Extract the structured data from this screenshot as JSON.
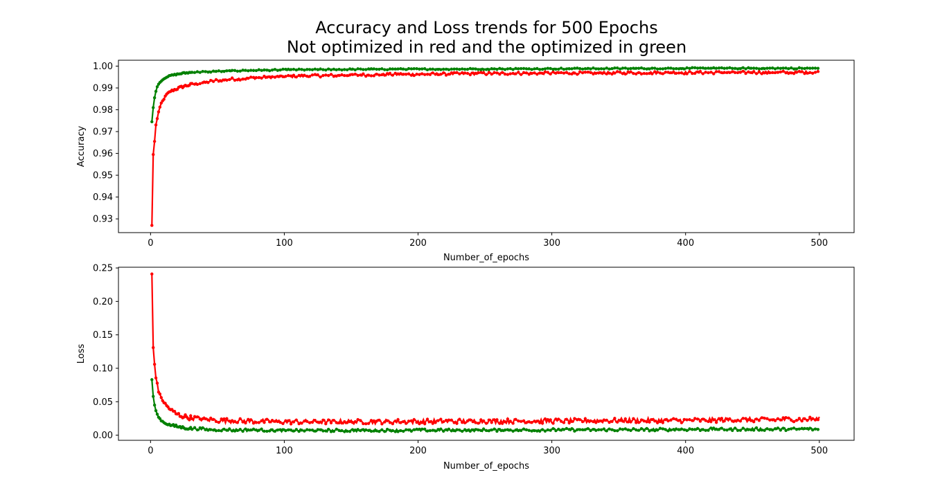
{
  "figure": {
    "title_line1": "Accuracy and Loss trends for 500 Epochs",
    "title_line2": "Not optimized in red and the optimized in green"
  },
  "colors": {
    "not_optimized": "#ff0000",
    "optimized": "#008000"
  },
  "chart_data": [
    {
      "type": "line",
      "xlabel": "Number_of_epochs",
      "ylabel": "Accuracy",
      "xlim": [
        -24,
        526
      ],
      "ylim": [
        0.9237,
        1.0027
      ],
      "xticks": [
        0,
        100,
        200,
        300,
        400,
        500
      ],
      "yticks": [
        0.93,
        0.94,
        0.95,
        0.96,
        0.97,
        0.98,
        0.99,
        1.0
      ],
      "ytick_labels": [
        "0.93",
        "0.94",
        "0.95",
        "0.96",
        "0.97",
        "0.98",
        "0.99",
        "1.00"
      ],
      "grid": false,
      "series": [
        {
          "color": "#ff0000",
          "x": [
            1,
            2,
            3,
            4,
            5,
            6,
            8,
            10,
            12,
            15,
            20,
            25,
            30,
            40,
            50,
            60,
            80,
            100,
            125,
            150,
            175,
            200,
            250,
            300,
            350,
            400,
            450,
            500
          ],
          "y": [
            0.927,
            0.9595,
            0.9655,
            0.973,
            0.976,
            0.979,
            0.983,
            0.985,
            0.987,
            0.9885,
            0.9897,
            0.9908,
            0.9915,
            0.9925,
            0.9935,
            0.994,
            0.9947,
            0.9952,
            0.9956,
            0.9959,
            0.9961,
            0.9963,
            0.9966,
            0.9968,
            0.9969,
            0.997,
            0.9971,
            0.9972
          ],
          "noise": 0.0006
        },
        {
          "color": "#008000",
          "x": [
            1,
            2,
            3,
            4,
            5,
            6,
            8,
            10,
            12,
            15,
            20,
            25,
            30,
            40,
            50,
            60,
            80,
            100,
            150,
            200,
            250,
            300,
            350,
            400,
            450,
            500
          ],
          "y": [
            0.9745,
            0.981,
            0.9855,
            0.9885,
            0.9905,
            0.9918,
            0.9932,
            0.9942,
            0.995,
            0.9957,
            0.9963,
            0.9968,
            0.9971,
            0.9974,
            0.9976,
            0.9978,
            0.9981,
            0.9983,
            0.9985,
            0.9986,
            0.9987,
            0.9988,
            0.9989,
            0.999,
            0.999,
            0.999
          ],
          "noise": 0.0003
        }
      ]
    },
    {
      "type": "line",
      "xlabel": "Number_of_epochs",
      "ylabel": "Loss",
      "xlim": [
        -24,
        526
      ],
      "ylim": [
        -0.0077,
        0.2511
      ],
      "xticks": [
        0,
        100,
        200,
        300,
        400,
        500
      ],
      "yticks": [
        0.0,
        0.05,
        0.1,
        0.15,
        0.2,
        0.25
      ],
      "ytick_labels": [
        "0.00",
        "0.05",
        "0.10",
        "0.15",
        "0.20",
        "0.25"
      ],
      "grid": false,
      "series": [
        {
          "color": "#ff0000",
          "x": [
            1,
            2,
            3,
            4,
            5,
            6,
            8,
            10,
            12,
            15,
            20,
            25,
            30,
            40,
            50,
            75,
            100,
            150,
            200,
            250,
            300,
            350,
            400,
            450,
            500
          ],
          "y": [
            0.241,
            0.131,
            0.106,
            0.085,
            0.078,
            0.065,
            0.056,
            0.049,
            0.044,
            0.038,
            0.031,
            0.028,
            0.026,
            0.024,
            0.022,
            0.021,
            0.02,
            0.02,
            0.0205,
            0.021,
            0.021,
            0.022,
            0.022,
            0.023,
            0.024
          ],
          "noise": 0.0035
        },
        {
          "color": "#008000",
          "x": [
            1,
            2,
            3,
            4,
            5,
            6,
            8,
            10,
            12,
            15,
            20,
            25,
            30,
            40,
            50,
            75,
            100,
            150,
            200,
            250,
            300,
            350,
            400,
            450,
            500
          ],
          "y": [
            0.083,
            0.058,
            0.045,
            0.037,
            0.031,
            0.027,
            0.022,
            0.019,
            0.017,
            0.015,
            0.013,
            0.011,
            0.01,
            0.009,
            0.008,
            0.0075,
            0.007,
            0.007,
            0.0072,
            0.0075,
            0.008,
            0.008,
            0.0085,
            0.009,
            0.009
          ],
          "noise": 0.002
        }
      ]
    }
  ]
}
